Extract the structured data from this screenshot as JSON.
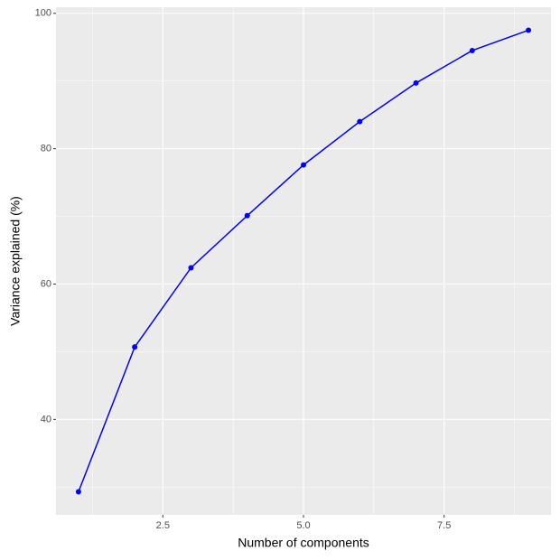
{
  "chart_data": {
    "type": "line",
    "x_label": "Number of components",
    "y_label": "Variance explained (%)",
    "x": [
      1,
      2,
      3,
      4,
      5,
      6,
      7,
      8,
      9
    ],
    "series": [
      {
        "color": "#0000ff",
        "values": [
          29.3,
          50.7,
          62.4,
          70.1,
          77.6,
          84.0,
          89.7,
          94.5,
          97.5
        ]
      }
    ],
    "xlim": [
      0.6,
      9.4
    ],
    "xticks": [
      {
        "value": 2.5,
        "label": "2.5"
      },
      {
        "value": 5,
        "label": "5.0"
      },
      {
        "value": 7.5,
        "label": "7.5"
      }
    ],
    "ylim": [
      25.9,
      100.9
    ],
    "yticks": [
      40,
      60,
      80,
      100
    ],
    "grid": true
  }
}
